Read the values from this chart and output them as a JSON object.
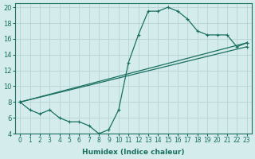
{
  "xlabel": "Humidex (Indice chaleur)",
  "ylabel": "",
  "bg_color": "#d4ecec",
  "grid_color": "#b8d4d4",
  "line_color": "#1a7060",
  "xlim": [
    -0.5,
    23.5
  ],
  "ylim": [
    4,
    20.5
  ],
  "xticks": [
    0,
    1,
    2,
    3,
    4,
    5,
    6,
    7,
    8,
    9,
    10,
    11,
    12,
    13,
    14,
    15,
    16,
    17,
    18,
    19,
    20,
    21,
    22,
    23
  ],
  "yticks": [
    4,
    6,
    8,
    10,
    12,
    14,
    16,
    18,
    20
  ],
  "series": [
    {
      "x": [
        0,
        1,
        2,
        3,
        4,
        5,
        6,
        7,
        8,
        9,
        10,
        11,
        12,
        13,
        14,
        15,
        16,
        17,
        18,
        19,
        20,
        21,
        22,
        23
      ],
      "y": [
        8,
        7,
        6.5,
        7,
        6,
        5.5,
        5.5,
        5,
        4,
        4.5,
        7,
        13,
        16.5,
        19.5,
        19.5,
        20,
        19.5,
        18.5,
        17,
        16.5,
        16.5,
        16.5,
        15,
        15.5
      ]
    },
    {
      "x": [
        0,
        23
      ],
      "y": [
        8,
        15.5
      ]
    },
    {
      "x": [
        0,
        23
      ],
      "y": [
        8,
        15
      ]
    }
  ]
}
